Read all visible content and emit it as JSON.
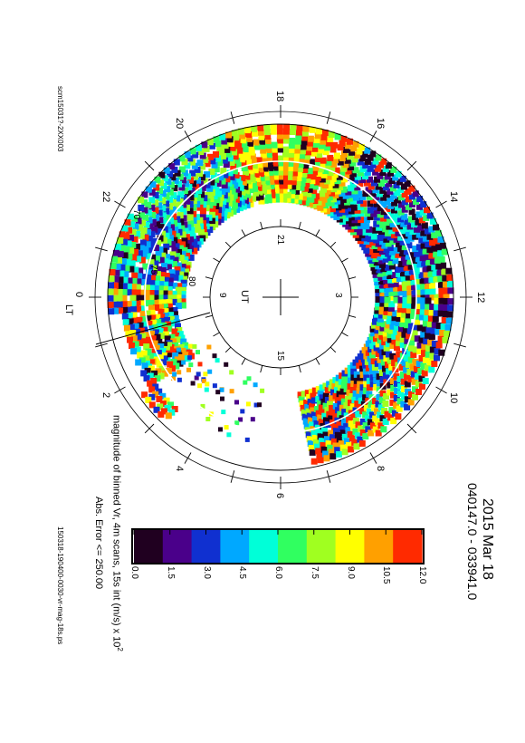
{
  "header": {
    "date": "2015 Mar 18",
    "time_range": "040147.0 - 033941.0",
    "caption": "magnitude of binned Vr, 4m scans, 15s int (m/s) x 10",
    "caption_exponent": "2",
    "abs_error": "Abs. Error <= 250.00",
    "file_left": "scm15031?-2XX003",
    "file_right": "150318-190400-0030-vr-mag-18s.ps"
  },
  "chart_data": {
    "type": "heatmap",
    "projection": "polar, magnetic local time",
    "outer_hour_labels": [
      "18",
      "16",
      "14",
      "12",
      "10",
      "8",
      "6",
      "4",
      "2",
      "0",
      "22",
      "20"
    ],
    "outer_axis_label": "LT",
    "inner_hour_labels": [
      "21",
      "3",
      "15",
      "9"
    ],
    "inner_axis_label": "UT",
    "latitude_labels": [
      "70",
      "75",
      "80"
    ],
    "colorbar": {
      "ticks": [
        "0.0",
        "1.5",
        "3.0",
        "4.5",
        "6.0",
        "7.5",
        "9.0",
        "10.5",
        "12.0"
      ],
      "range": [
        0,
        12
      ],
      "colors": [
        "#200020",
        "#4a008a",
        "#1030d0",
        "#00a8ff",
        "#00ffd8",
        "#30ff60",
        "#a0ff20",
        "#ffff00",
        "#ffa000",
        "#ff2a00"
      ]
    }
  },
  "colors": {
    "frame": "#000000",
    "circle": "#ffffff"
  }
}
